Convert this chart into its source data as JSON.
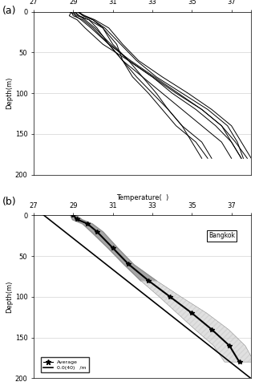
{
  "xlim": [
    27,
    38
  ],
  "ylim": [
    200,
    0
  ],
  "xticks": [
    27,
    29,
    31,
    33,
    35,
    37,
    38
  ],
  "yticks": [
    0,
    50,
    100,
    150,
    200
  ],
  "xlabel": "Temperature(  )",
  "ylabel": "Depth(m)",
  "bg_color": "#f0f0f0",
  "profiles": [
    [
      [
        28.9,
        28.8,
        29.2,
        29.6,
        30.5,
        31.8,
        32.5,
        33.2,
        33.8,
        34.5,
        35.0,
        35.5
      ],
      [
        0,
        5,
        10,
        20,
        40,
        60,
        80,
        100,
        120,
        140,
        160,
        180
      ]
    ],
    [
      [
        28.9,
        29.0,
        29.5,
        30.0,
        30.8,
        31.5,
        32.0,
        32.8,
        33.5,
        34.2,
        35.2,
        35.8
      ],
      [
        0,
        5,
        10,
        20,
        40,
        60,
        80,
        100,
        120,
        140,
        160,
        180
      ]
    ],
    [
      [
        28.8,
        29.2,
        29.8,
        30.5,
        31.2,
        31.5,
        32.2,
        33.0,
        33.8,
        34.5,
        35.5,
        36.0
      ],
      [
        0,
        5,
        10,
        20,
        40,
        60,
        80,
        100,
        120,
        140,
        160,
        180
      ]
    ],
    [
      [
        29.0,
        29.3,
        29.8,
        30.2,
        30.8,
        31.5,
        32.5,
        33.5,
        34.5,
        35.5,
        36.5,
        37.0
      ],
      [
        0,
        5,
        10,
        20,
        40,
        60,
        80,
        100,
        120,
        140,
        160,
        180
      ]
    ],
    [
      [
        29.2,
        29.5,
        30.0,
        30.5,
        31.0,
        31.8,
        33.0,
        34.0,
        35.2,
        36.2,
        37.0,
        37.5
      ],
      [
        0,
        5,
        10,
        20,
        40,
        60,
        80,
        100,
        120,
        140,
        160,
        180
      ]
    ],
    [
      [
        29.1,
        29.3,
        29.6,
        30.1,
        30.9,
        31.8,
        33.0,
        34.2,
        35.5,
        36.5,
        37.2,
        37.8
      ],
      [
        0,
        5,
        10,
        20,
        40,
        60,
        80,
        100,
        120,
        140,
        160,
        180
      ]
    ],
    [
      [
        29.0,
        29.1,
        29.4,
        29.9,
        30.8,
        31.9,
        33.1,
        34.3,
        35.5,
        36.5,
        37.0,
        37.5
      ],
      [
        0,
        5,
        10,
        20,
        40,
        60,
        80,
        100,
        120,
        140,
        160,
        180
      ]
    ],
    [
      [
        29.3,
        29.5,
        30.0,
        30.6,
        31.4,
        32.2,
        33.2,
        34.5,
        35.8,
        36.8,
        37.3,
        37.6
      ],
      [
        0,
        5,
        10,
        20,
        40,
        60,
        80,
        100,
        120,
        140,
        160,
        180
      ]
    ],
    [
      [
        29.2,
        29.6,
        30.1,
        30.8,
        31.5,
        32.3,
        33.5,
        34.8,
        36.0,
        37.0,
        37.5,
        38.0
      ],
      [
        0,
        5,
        10,
        20,
        40,
        60,
        80,
        100,
        120,
        140,
        160,
        180
      ]
    ]
  ],
  "avg_profile_temp": [
    29.0,
    29.2,
    29.7,
    30.2,
    31.0,
    31.8,
    32.8,
    33.9,
    35.0,
    36.0,
    36.9,
    37.4
  ],
  "avg_profile_depth": [
    0,
    5,
    10,
    20,
    40,
    60,
    80,
    100,
    120,
    140,
    160,
    180
  ],
  "std_profile": [
    0.15,
    0.25,
    0.25,
    0.3,
    0.25,
    0.25,
    0.4,
    0.55,
    0.75,
    0.85,
    0.8,
    0.75
  ],
  "gradient_line": {
    "temp": [
      27.0,
      38.5
    ],
    "depth": [
      -10,
      210
    ]
  },
  "gradient_label": "0.0(40)   /m",
  "city_label": "Bangkok",
  "legend_avg": "Average",
  "title_a_label": "(a)",
  "title_b_label": "(b)"
}
